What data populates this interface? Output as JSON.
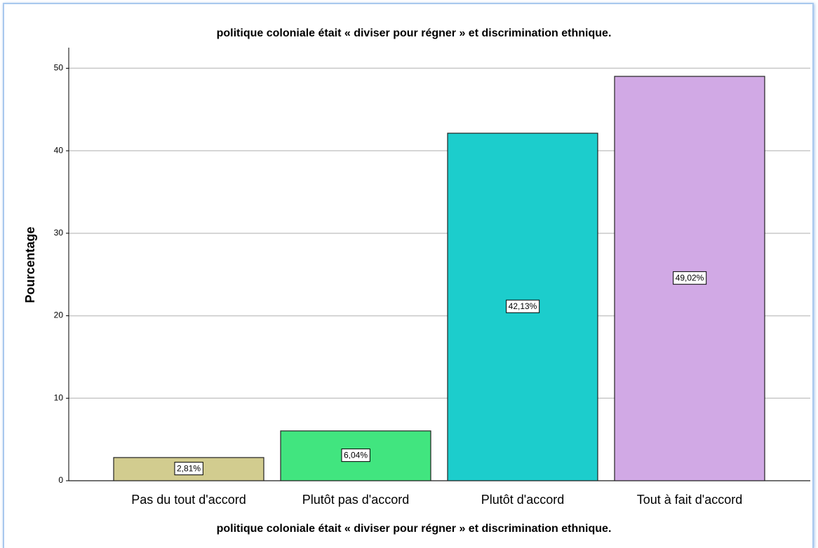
{
  "chart_data": {
    "type": "bar",
    "title": "politique coloniale était  « diviser pour régner » et discrimination ethnique.",
    "x_label": "politique coloniale était  « diviser pour régner » et discrimination ethnique.",
    "y_label": "Pourcentage",
    "categories": [
      "Pas du tout d'accord",
      "Plutôt pas d'accord",
      "Plutôt d'accord",
      "Tout à fait d'accord"
    ],
    "values": [
      2.81,
      6.04,
      42.13,
      49.02
    ],
    "value_labels": [
      "2,81%",
      "6,04%",
      "42,13%",
      "49,02%"
    ],
    "colors": [
      "#d2cc8f",
      "#41e57f",
      "#1ccdcc",
      "#d1a9e5"
    ],
    "ylim": [
      0,
      52.5
    ],
    "yticks": [
      0,
      10,
      20,
      30,
      40,
      50
    ],
    "grid": true
  }
}
